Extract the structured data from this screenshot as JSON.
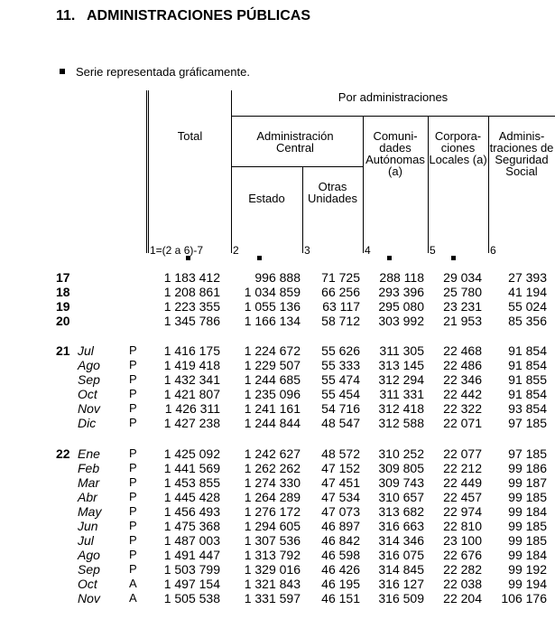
{
  "title": {
    "number": "11.",
    "text": "ADMINISTRACIONES PÚBLICAS"
  },
  "note": "Serie representada gráficamente.",
  "headers": {
    "total": "Total",
    "por_admin": "Por administraciones",
    "admin_central": "Administración Central",
    "estado": "Estado",
    "otras": "Otras Unidades",
    "comunidades": "Comuni- dades Autónomas (a)",
    "corporaciones": "Corpora- ciones Locales (a)",
    "seguridad": "Adminis- traciones de Seguridad Social",
    "col_numbers": [
      "1=(2 a 6)-7",
      "2",
      "3",
      "4",
      "5",
      "6"
    ]
  },
  "rows": [
    {
      "year": "17",
      "month": "",
      "flag": "",
      "values": [
        "1 183 412",
        "996 888",
        "71 725",
        "288 118",
        "29 034",
        "27 393"
      ]
    },
    {
      "year": "18",
      "month": "",
      "flag": "",
      "values": [
        "1 208 861",
        "1 034 859",
        "66 256",
        "293 396",
        "25 780",
        "41 194"
      ]
    },
    {
      "year": "19",
      "month": "",
      "flag": "",
      "values": [
        "1 223 355",
        "1 055 136",
        "63 117",
        "295 080",
        "23 231",
        "55 024"
      ]
    },
    {
      "year": "20",
      "month": "",
      "flag": "",
      "values": [
        "1 345 786",
        "1 166 134",
        "58 712",
        "303 992",
        "21 953",
        "85 356"
      ]
    },
    {
      "year": "21",
      "month": "Jul",
      "flag": "P",
      "values": [
        "1 416 175",
        "1 224 672",
        "55 626",
        "311 305",
        "22 468",
        "91 854"
      ]
    },
    {
      "year": "",
      "month": "Ago",
      "flag": "P",
      "values": [
        "1 419 418",
        "1 229 507",
        "55 333",
        "313 145",
        "22 486",
        "91 854"
      ]
    },
    {
      "year": "",
      "month": "Sep",
      "flag": "P",
      "values": [
        "1 432 341",
        "1 244 685",
        "55 474",
        "312 294",
        "22 346",
        "91 855"
      ]
    },
    {
      "year": "",
      "month": "Oct",
      "flag": "P",
      "values": [
        "1 421 807",
        "1 235 096",
        "55 454",
        "311 331",
        "22 442",
        "91 854"
      ]
    },
    {
      "year": "",
      "month": "Nov",
      "flag": "P",
      "values": [
        "1 426 311",
        "1 241 161",
        "54 716",
        "312 418",
        "22 322",
        "93 854"
      ]
    },
    {
      "year": "",
      "month": "Dic",
      "flag": "P",
      "values": [
        "1 427 238",
        "1 244 844",
        "48 547",
        "312 588",
        "22 071",
        "97 185"
      ]
    },
    {
      "year": "22",
      "month": "Ene",
      "flag": "P",
      "values": [
        "1 425 092",
        "1 242 627",
        "48 572",
        "310 252",
        "22 077",
        "97 185"
      ]
    },
    {
      "year": "",
      "month": "Feb",
      "flag": "P",
      "values": [
        "1 441 569",
        "1 262 262",
        "47 152",
        "309 805",
        "22 212",
        "99 186"
      ]
    },
    {
      "year": "",
      "month": "Mar",
      "flag": "P",
      "values": [
        "1 453 855",
        "1 274 330",
        "47 451",
        "309 743",
        "22 449",
        "99 187"
      ]
    },
    {
      "year": "",
      "month": "Abr",
      "flag": "P",
      "values": [
        "1 445 428",
        "1 264 289",
        "47 534",
        "310 657",
        "22 457",
        "99 185"
      ]
    },
    {
      "year": "",
      "month": "May",
      "flag": "P",
      "values": [
        "1 456 493",
        "1 276 172",
        "47 073",
        "313 682",
        "22 974",
        "99 184"
      ]
    },
    {
      "year": "",
      "month": "Jun",
      "flag": "P",
      "values": [
        "1 475 368",
        "1 294 605",
        "46 897",
        "316 663",
        "22 810",
        "99 185"
      ]
    },
    {
      "year": "",
      "month": "Jul",
      "flag": "P",
      "values": [
        "1 487 003",
        "1 307 536",
        "46 842",
        "314 346",
        "23 100",
        "99 185"
      ]
    },
    {
      "year": "",
      "month": "Ago",
      "flag": "P",
      "values": [
        "1 491 447",
        "1 313 792",
        "46 598",
        "316 075",
        "22 676",
        "99 184"
      ]
    },
    {
      "year": "",
      "month": "Sep",
      "flag": "P",
      "values": [
        "1 503 799",
        "1 329 016",
        "46 426",
        "314 845",
        "22 282",
        "99 192"
      ]
    },
    {
      "year": "",
      "month": "Oct",
      "flag": "A",
      "values": [
        "1 497 154",
        "1 321 843",
        "46 195",
        "316 127",
        "22 038",
        "99 194"
      ]
    },
    {
      "year": "",
      "month": "Nov",
      "flag": "A",
      "values": [
        "1 505 538",
        "1 331 597",
        "46 151",
        "316 509",
        "22 204",
        "106 176"
      ]
    }
  ]
}
